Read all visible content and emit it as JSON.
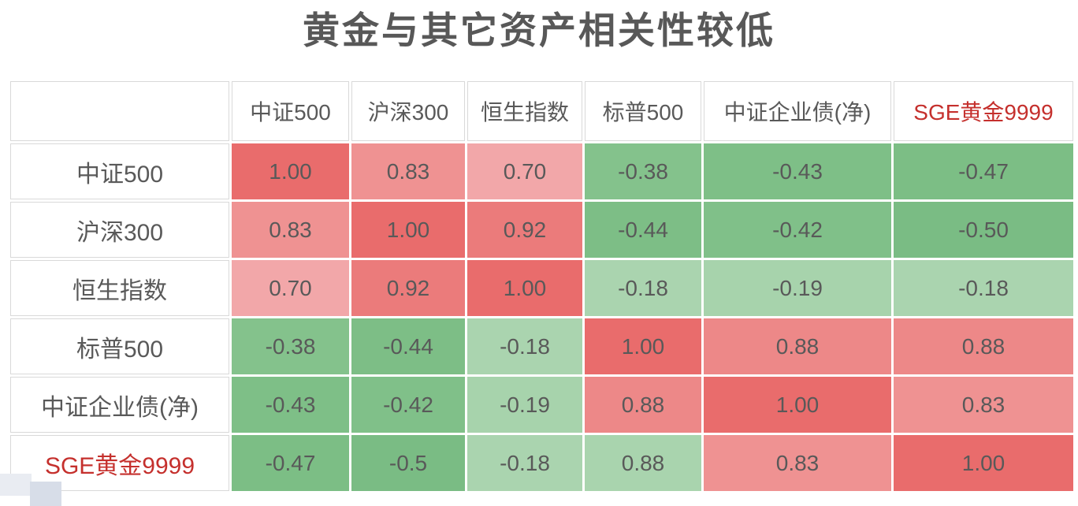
{
  "title": "黄金与其它资产相关性较低",
  "colors": {
    "text": "#595959",
    "highlight_text": "#c5302d",
    "strong_positive": "#E96C6C",
    "strong_negative": "#7ABC84",
    "weak_negative": "#AAD4AF"
  },
  "chart_data": {
    "type": "heatmap",
    "title": "黄金与其它资产相关性较低",
    "legend_position": "none",
    "highlight_index": 5,
    "columns": [
      "中证500",
      "沪深300",
      "恒生指数",
      "标普500",
      "中证企业债(净)",
      "SGE黄金9999"
    ],
    "rows": [
      "中证500",
      "沪深300",
      "恒生指数",
      "标普500",
      "中证企业债(净)",
      "SGE黄金9999"
    ],
    "values": [
      [
        1.0,
        0.83,
        0.7,
        -0.38,
        -0.43,
        -0.47
      ],
      [
        0.83,
        1.0,
        0.92,
        -0.44,
        -0.42,
        -0.5
      ],
      [
        0.7,
        0.92,
        1.0,
        -0.18,
        -0.19,
        -0.18
      ],
      [
        -0.38,
        -0.44,
        -0.18,
        1.0,
        0.88,
        0.88
      ],
      [
        -0.43,
        -0.42,
        -0.19,
        0.88,
        1.0,
        0.83
      ],
      [
        -0.47,
        -0.5,
        -0.18,
        0.88,
        0.83,
        1.0
      ]
    ],
    "cell_text": [
      [
        "1.00",
        "0.83",
        "0.70",
        "-0.38",
        "-0.43",
        "-0.47"
      ],
      [
        "0.83",
        "1.00",
        "0.92",
        "-0.44",
        "-0.42",
        "-0.50"
      ],
      [
        "0.70",
        "0.92",
        "1.00",
        "-0.18",
        "-0.19",
        "-0.18"
      ],
      [
        "-0.38",
        "-0.44",
        "-0.18",
        "1.00",
        "0.88",
        "0.88"
      ],
      [
        "-0.43",
        "-0.42",
        "-0.19",
        "0.88",
        "1.00",
        "0.83"
      ],
      [
        "-0.47",
        "-0.5",
        "-0.18",
        "0.88",
        "0.83",
        "1.00"
      ]
    ],
    "cell_colors": [
      [
        "#E96C6C",
        "#EF9292",
        "#F2A7A9",
        "#84C28C",
        "#7EBF87",
        "#7CBE85"
      ],
      [
        "#EF9292",
        "#E96C6C",
        "#EB7B7B",
        "#7DBE86",
        "#80C089",
        "#7ABC84"
      ],
      [
        "#F2A7A9",
        "#EB7B7B",
        "#E96C6C",
        "#AAD4AF",
        "#A7D3AC",
        "#AAD4AF"
      ],
      [
        "#84C28C",
        "#7DBE86",
        "#AAD4AF",
        "#E96C6C",
        "#ED8888",
        "#ED8888"
      ],
      [
        "#7EBF87",
        "#80C089",
        "#A7D3AC",
        "#ED8888",
        "#E96C6C",
        "#EF9292"
      ],
      [
        "#7CBE85",
        "#7ABC84",
        "#AAD4AF",
        "#A9D4AE",
        "#EF9292",
        "#E96C6C"
      ]
    ]
  }
}
